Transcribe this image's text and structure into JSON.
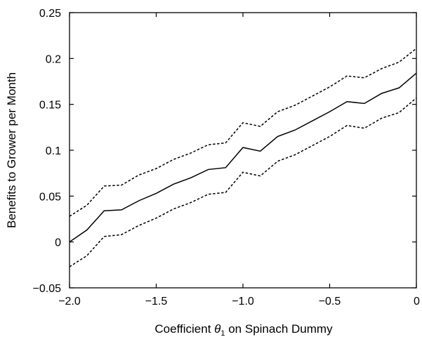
{
  "chart_data": {
    "type": "line",
    "title": "",
    "xlabel_prefix": "Coefficient ",
    "xlabel_symbol": "θ",
    "xlabel_subscript": "1",
    "xlabel_suffix": " on Spinach Dummy",
    "ylabel": "Benefits to Grower per Month",
    "xlim": [
      -2.0,
      0
    ],
    "ylim": [
      -0.05,
      0.25
    ],
    "x_ticks": [
      -2.0,
      -1.5,
      -1.0,
      -0.5,
      0
    ],
    "x_tick_labels": [
      "−2.0",
      "−1.5",
      "−1.0",
      "−0.5",
      "0"
    ],
    "y_ticks": [
      -0.05,
      0,
      0.05,
      0.1,
      0.15,
      0.2,
      0.25
    ],
    "y_tick_labels": [
      "−0.05",
      "0",
      "0.05",
      "0.1",
      "0.15",
      "0.2",
      "0.25"
    ],
    "grid": false,
    "legend": "none",
    "x": [
      -2.0,
      -1.9,
      -1.8,
      -1.7,
      -1.6,
      -1.5,
      -1.4,
      -1.3,
      -1.2,
      -1.1,
      -1.0,
      -0.9,
      -0.8,
      -0.7,
      -0.6,
      -0.5,
      -0.4,
      -0.3,
      -0.2,
      -0.1,
      0.0
    ],
    "series": [
      {
        "style": "solid",
        "color": "#000000",
        "values": [
          0.0,
          0.013,
          0.034,
          0.035,
          0.045,
          0.053,
          0.063,
          0.07,
          0.079,
          0.081,
          0.103,
          0.099,
          0.115,
          0.122,
          0.132,
          0.142,
          0.153,
          0.151,
          0.162,
          0.168,
          0.184
        ]
      },
      {
        "style": "dashed",
        "color": "#000000",
        "values": [
          0.028,
          0.04,
          0.061,
          0.062,
          0.073,
          0.08,
          0.09,
          0.097,
          0.106,
          0.108,
          0.13,
          0.126,
          0.142,
          0.149,
          0.159,
          0.169,
          0.181,
          0.179,
          0.189,
          0.196,
          0.211
        ]
      },
      {
        "style": "dashed",
        "color": "#000000",
        "values": [
          -0.027,
          -0.015,
          0.006,
          0.008,
          0.018,
          0.026,
          0.036,
          0.043,
          0.052,
          0.054,
          0.076,
          0.072,
          0.088,
          0.095,
          0.105,
          0.115,
          0.127,
          0.124,
          0.135,
          0.141,
          0.157
        ]
      }
    ]
  }
}
